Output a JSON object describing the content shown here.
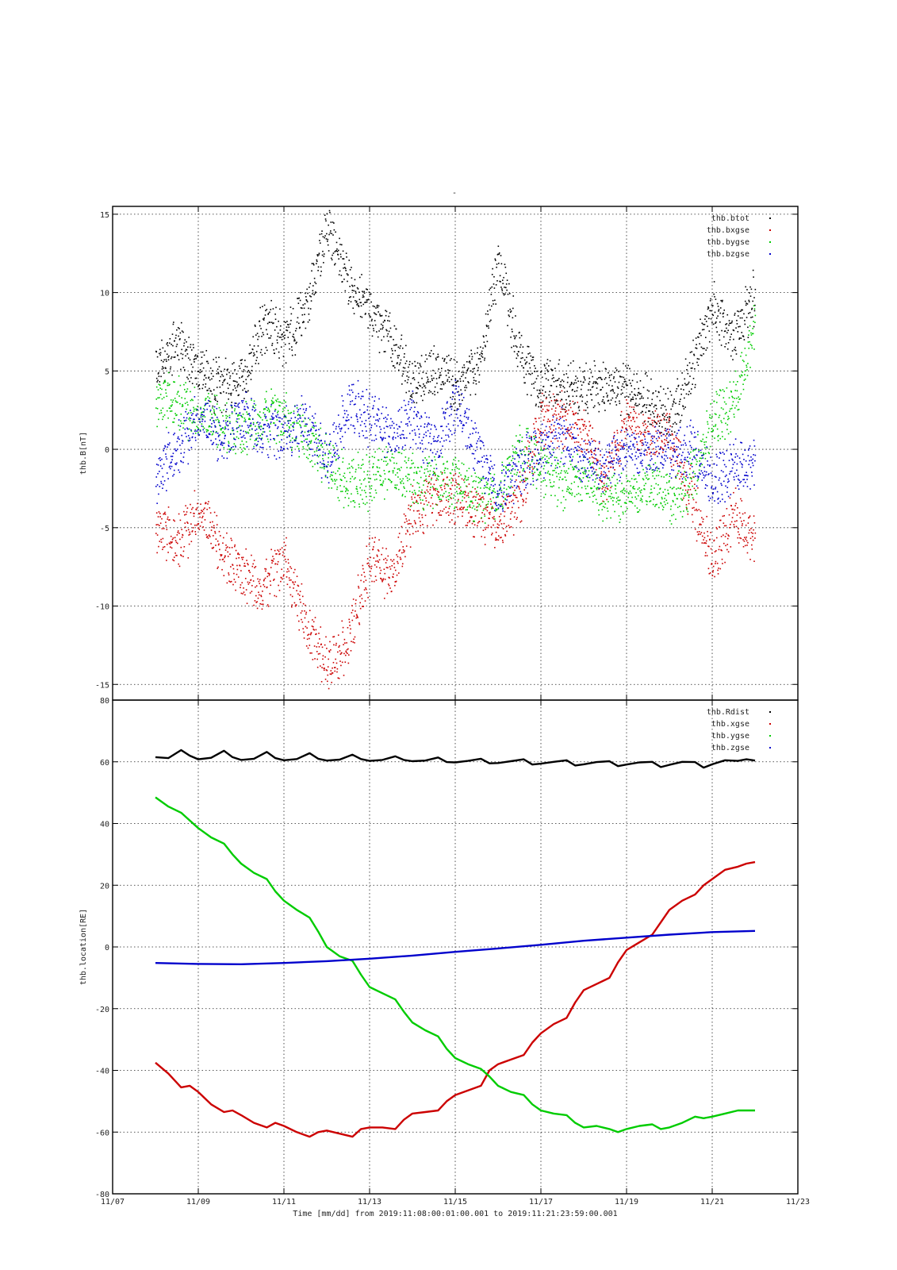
{
  "page_title": "-",
  "xaxis": {
    "label": "Time [mm/dd]  from 2019:11:08:00:01:00.001  to  2019:11:21:23:59:00.001",
    "ticks": [
      "11/07",
      "11/09",
      "11/11",
      "11/13",
      "11/15",
      "11/17",
      "11/19",
      "11/21",
      "11/23"
    ],
    "range_days": [
      0,
      16
    ],
    "tick_days": [
      0,
      2,
      4,
      6,
      8,
      10,
      12,
      14,
      16
    ]
  },
  "colors": {
    "black": "#000000",
    "red": "#cc0000",
    "green": "#00cc00",
    "blue": "#0000cc"
  },
  "chart_data": [
    {
      "type": "scatter",
      "title": "",
      "ylabel": "thb.B[nT]",
      "ylim": [
        -16,
        15.5
      ],
      "yticks": [
        -15,
        -10,
        -5,
        0,
        5,
        10,
        15
      ],
      "legend_position": "top-right",
      "series": [
        {
          "name": "thb.btot",
          "color": "#000000",
          "x": [
            1.0,
            1.5,
            2.0,
            2.5,
            3.0,
            3.5,
            4.0,
            4.5,
            5.0,
            5.5,
            6.0,
            6.5,
            7.0,
            7.5,
            8.0,
            8.5,
            9.0,
            9.5,
            10.0,
            10.5,
            11.0,
            11.5,
            12.0,
            12.5,
            13.0,
            13.5,
            14.0,
            14.5,
            15.0
          ],
          "y": [
            5,
            7,
            5,
            4,
            4,
            8,
            7,
            9,
            14,
            11,
            9,
            7,
            4,
            5,
            4,
            5,
            12,
            6,
            4,
            4,
            4,
            4,
            4,
            3,
            2,
            5,
            9,
            7,
            10
          ]
        },
        {
          "name": "thb.bxgse",
          "color": "#cc0000",
          "x": [
            1.0,
            1.5,
            2.0,
            2.5,
            3.0,
            3.5,
            4.0,
            4.5,
            5.0,
            5.5,
            6.0,
            6.5,
            7.0,
            7.5,
            8.0,
            8.5,
            9.0,
            9.5,
            10.0,
            10.5,
            11.0,
            11.5,
            12.0,
            12.5,
            13.0,
            13.5,
            14.0,
            14.5,
            15.0
          ],
          "y": [
            -5,
            -6,
            -4,
            -6,
            -8,
            -9,
            -7,
            -11,
            -14,
            -12,
            -7,
            -8,
            -4,
            -3,
            -3,
            -4,
            -5,
            -3,
            2,
            2,
            1,
            -2,
            2,
            1,
            1,
            -3,
            -7,
            -4,
            -6
          ]
        },
        {
          "name": "thb.bygse",
          "color": "#00cc00",
          "x": [
            1.0,
            1.5,
            2.0,
            2.5,
            3.0,
            3.5,
            4.0,
            4.5,
            5.0,
            5.5,
            6.0,
            6.5,
            7.0,
            7.5,
            8.0,
            8.5,
            9.0,
            9.5,
            10.0,
            10.5,
            11.0,
            11.5,
            12.0,
            12.5,
            13.0,
            13.5,
            14.0,
            14.5,
            15.0
          ],
          "y": [
            3,
            3,
            2,
            2,
            1,
            2,
            2,
            1,
            -1,
            -2,
            -2,
            -1,
            -2,
            -2,
            -2,
            -3,
            -3,
            0,
            -1,
            -2,
            -2,
            -3,
            -3,
            -2,
            -3,
            -2,
            2,
            3,
            8
          ]
        },
        {
          "name": "thb.bzgse",
          "color": "#0000cc",
          "x": [
            1.0,
            1.5,
            2.0,
            2.5,
            3.0,
            3.5,
            4.0,
            4.5,
            5.0,
            5.5,
            6.0,
            6.5,
            7.0,
            7.5,
            8.0,
            8.5,
            9.0,
            9.5,
            10.0,
            10.5,
            11.0,
            11.5,
            12.0,
            12.5,
            13.0,
            13.5,
            14.0,
            14.5,
            15.0
          ],
          "y": [
            -2,
            0,
            2,
            1,
            2,
            1,
            1,
            2,
            -1,
            3,
            2,
            1,
            2,
            0,
            3,
            0,
            -3,
            -1,
            0,
            1,
            -1,
            -1,
            0,
            0,
            0,
            0,
            -2,
            -1,
            -1
          ]
        }
      ]
    },
    {
      "type": "line",
      "title": "",
      "ylabel": "thb.location[RE]",
      "ylim": [
        -80,
        80
      ],
      "yticks": [
        -80,
        -60,
        -40,
        -20,
        0,
        20,
        40,
        60,
        80
      ],
      "legend_position": "top-right",
      "series": [
        {
          "name": "thb.Rdist",
          "color": "#000000",
          "x": [
            1.0,
            1.3,
            1.6,
            1.8,
            2.0,
            2.3,
            2.6,
            2.8,
            3.0,
            3.3,
            3.6,
            3.8,
            4.0,
            4.3,
            4.6,
            4.8,
            5.0,
            5.3,
            5.6,
            5.8,
            6.0,
            6.3,
            6.6,
            6.8,
            7.0,
            7.3,
            7.6,
            7.8,
            8.0,
            8.3,
            8.6,
            8.8,
            9.0,
            9.3,
            9.6,
            9.8,
            10.0,
            10.3,
            10.6,
            10.8,
            11.0,
            11.3,
            11.6,
            11.8,
            12.0,
            12.3,
            12.6,
            12.8,
            13.0,
            13.3,
            13.6,
            13.8,
            14.0,
            14.3,
            14.6,
            14.8,
            15.0
          ],
          "y": [
            61.5,
            61.2,
            63.8,
            62,
            60.8,
            61.3,
            63.6,
            61.5,
            60.6,
            61,
            63.2,
            61.2,
            60.5,
            60.9,
            62.8,
            61,
            60.4,
            60.7,
            62.3,
            60.9,
            60.3,
            60.6,
            61.8,
            60.6,
            60.2,
            60.4,
            61.4,
            59.9,
            59.8,
            60.3,
            61.0,
            59.5,
            59.6,
            60.2,
            60.8,
            59.1,
            59.4,
            60.0,
            60.5,
            58.8,
            59.2,
            59.9,
            60.2,
            58.6,
            59.1,
            59.8,
            60.0,
            58.3,
            59.0,
            60.0,
            59.9,
            58.1,
            59.2,
            60.5,
            60.3,
            60.8,
            60.4
          ]
        },
        {
          "name": "thb.xgse",
          "color": "#cc0000",
          "x": [
            1.0,
            1.3,
            1.6,
            1.8,
            2.0,
            2.3,
            2.6,
            2.8,
            3.0,
            3.3,
            3.6,
            3.8,
            4.0,
            4.3,
            4.6,
            4.8,
            5.0,
            5.3,
            5.6,
            5.8,
            6.0,
            6.3,
            6.6,
            6.8,
            7.0,
            7.3,
            7.6,
            7.8,
            8.0,
            8.3,
            8.6,
            8.8,
            9.0,
            9.3,
            9.6,
            9.8,
            10.0,
            10.3,
            10.6,
            10.8,
            11.0,
            11.3,
            11.6,
            11.8,
            12.0,
            12.3,
            12.6,
            12.8,
            13.0,
            13.3,
            13.6,
            13.8,
            14.0,
            14.3,
            14.6,
            14.8,
            15.0
          ],
          "y": [
            -37.5,
            -41,
            -45.5,
            -45,
            -47,
            -51,
            -53.5,
            -53,
            -54.5,
            -57,
            -58.5,
            -57,
            -58,
            -60,
            -61.5,
            -60,
            -59.5,
            -60.5,
            -61.5,
            -59,
            -58.5,
            -58.5,
            -59,
            -56,
            -54,
            -53.5,
            -53,
            -50,
            -48,
            -46.5,
            -45,
            -40,
            -38,
            -36.5,
            -35,
            -31,
            -28,
            -25,
            -23,
            -18,
            -14,
            -12,
            -10,
            -5,
            -1,
            1.5,
            4,
            8,
            12,
            15,
            17,
            20,
            22,
            25,
            26,
            27,
            27.5
          ]
        },
        {
          "name": "thb.ygse",
          "color": "#00cc00",
          "x": [
            1.0,
            1.3,
            1.6,
            1.8,
            2.0,
            2.3,
            2.6,
            2.8,
            3.0,
            3.3,
            3.6,
            3.8,
            4.0,
            4.3,
            4.6,
            4.8,
            5.0,
            5.3,
            5.6,
            5.8,
            6.0,
            6.3,
            6.6,
            6.8,
            7.0,
            7.3,
            7.6,
            7.8,
            8.0,
            8.3,
            8.6,
            8.8,
            9.0,
            9.3,
            9.6,
            9.8,
            10.0,
            10.3,
            10.6,
            10.8,
            11.0,
            11.3,
            11.6,
            11.8,
            12.0,
            12.3,
            12.6,
            12.8,
            13.0,
            13.3,
            13.6,
            13.8,
            14.0,
            14.3,
            14.6,
            14.8,
            15.0
          ],
          "y": [
            48.5,
            45.5,
            43.5,
            41,
            38.5,
            35.5,
            33.5,
            30,
            27,
            24,
            22,
            18,
            15,
            12,
            9.5,
            5,
            0,
            -3,
            -4.5,
            -9,
            -13,
            -15,
            -17,
            -21,
            -24.5,
            -27,
            -29,
            -33,
            -36,
            -38,
            -39.5,
            -42,
            -45,
            -47,
            -48,
            -51,
            -53,
            -54,
            -54.5,
            -57,
            -58.5,
            -58,
            -59,
            -60,
            -59,
            -58,
            -57.5,
            -59,
            -58.5,
            -57,
            -55,
            -55.5,
            -55,
            -54,
            -53,
            -53,
            -53
          ]
        },
        {
          "name": "thb.zgse",
          "color": "#0000cc",
          "x": [
            1.0,
            2.0,
            3.0,
            4.0,
            5.0,
            6.0,
            7.0,
            8.0,
            9.0,
            10.0,
            11.0,
            12.0,
            13.0,
            14.0,
            15.0
          ],
          "y": [
            -5.2,
            -5.5,
            -5.6,
            -5.2,
            -4.6,
            -3.8,
            -2.8,
            -1.6,
            -0.5,
            0.7,
            2,
            3,
            4,
            4.8,
            5.2
          ]
        }
      ]
    }
  ]
}
